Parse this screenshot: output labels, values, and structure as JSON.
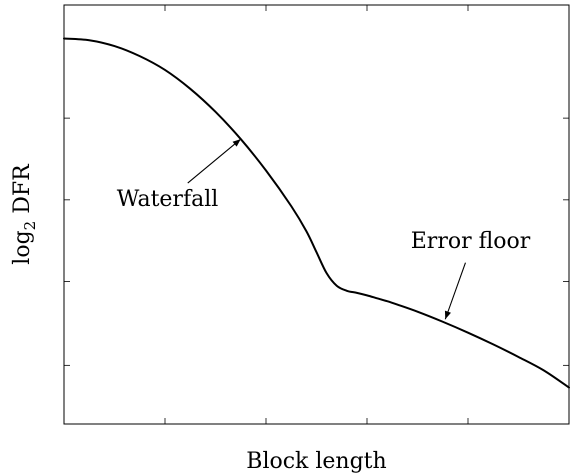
{
  "chart_data": {
    "type": "line",
    "title": "",
    "xlabel": "Block length",
    "ylabel_main": "log",
    "ylabel_sub": "2",
    "ylabel_rest": " DFR",
    "xlim": [
      0,
      100
    ],
    "ylim": [
      0,
      100
    ],
    "xticks": [
      20,
      40,
      60,
      80
    ],
    "yticks": [
      14,
      34,
      53.5,
      73
    ],
    "grid": false,
    "legend": "none",
    "series": [
      {
        "color": "#000000",
        "x": [
          0,
          5,
          10,
          15,
          20,
          25,
          30,
          35,
          40,
          45,
          48,
          50,
          52,
          54,
          56,
          58,
          60,
          62,
          64,
          66,
          70,
          75,
          80,
          85,
          90,
          95,
          100
        ],
        "y": [
          92,
          91.6,
          90.2,
          87.8,
          84.5,
          80,
          74.5,
          68,
          60.5,
          52,
          46,
          41,
          36,
          33,
          31.8,
          31.3,
          30.7,
          30,
          29.3,
          28.5,
          26.8,
          24.4,
          21.8,
          19,
          16,
          12.8,
          8.7
        ]
      }
    ],
    "annotations": [
      {
        "text": "Waterfall",
        "text_x": 20.5,
        "text_y": 52,
        "arrow_from": [
          24.5,
          57.5
        ],
        "arrow_to": [
          35,
          68
        ]
      },
      {
        "text": "Error floor",
        "text_x": 80.5,
        "text_y": 42,
        "arrow_from": [
          79.5,
          38.5
        ],
        "arrow_to": [
          75.5,
          25
        ]
      }
    ]
  }
}
